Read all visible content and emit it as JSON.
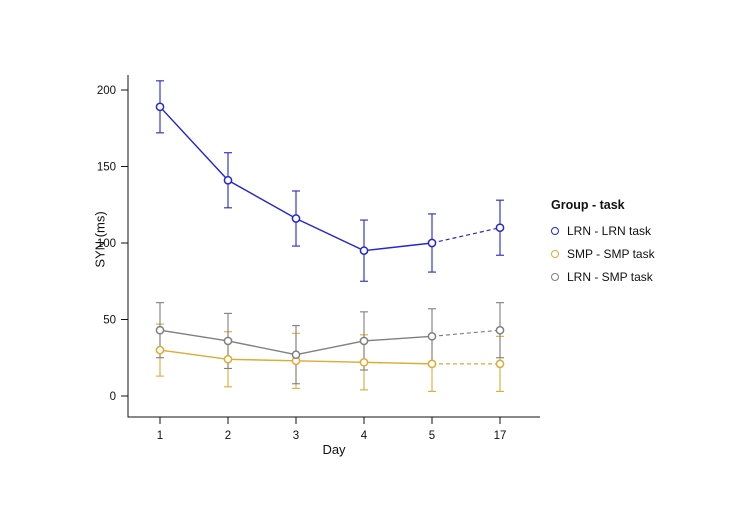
{
  "figure": {
    "background": "#ffffff"
  },
  "chart_data": {
    "type": "line",
    "title": "",
    "xlabel": "Day",
    "ylabel": "SYN (ms)",
    "categories": [
      "1",
      "2",
      "3",
      "4",
      "5",
      "17"
    ],
    "ylim": [
      0,
      210
    ],
    "yticks": [
      0,
      50,
      100,
      150,
      200
    ],
    "grid": false,
    "break_after_index": 4,
    "break_style": "dashed segment between day 5 and day 17",
    "legend": {
      "title": "Group - task",
      "position": "right"
    },
    "series": [
      {
        "name": "LRN - LRN task",
        "color": "#2525d2",
        "values": [
          189,
          141,
          116,
          95,
          100,
          110
        ],
        "error": [
          17,
          18,
          18,
          20,
          19,
          18
        ]
      },
      {
        "name": "SMP - SMP task",
        "color": "#ddaa33",
        "values": [
          30,
          24,
          23,
          22,
          21,
          21
        ],
        "error": [
          17,
          18,
          18,
          18,
          18,
          18
        ]
      },
      {
        "name": "LRN - SMP task",
        "color": "#7f7f7f",
        "values": [
          43,
          36,
          27,
          36,
          39,
          43
        ],
        "error": [
          18,
          18,
          19,
          19,
          18,
          18
        ]
      }
    ]
  }
}
